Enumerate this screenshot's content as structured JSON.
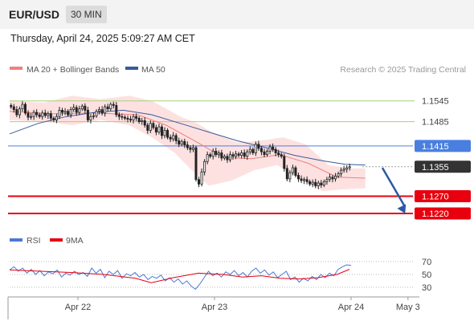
{
  "header": {
    "symbol": "EUR/USD",
    "timeframe": "30 MIN",
    "datetime": "Thursday, April 24, 2025 5:09:27 AM CET"
  },
  "colors": {
    "ma20": "#f08080",
    "ma50": "#3a5a9a",
    "bollinger_fill": "#fde1e1",
    "resistance": "#a6d17a",
    "pivot": "#4a7fe0",
    "support": "#e8000e",
    "current_price_bg": "#333333",
    "arrow": "#2a5aa8",
    "rsi": "#4a78d8",
    "rsi_ma": "#e8000e",
    "up_candle": "#ffffff",
    "down_candle": "#222222"
  },
  "legend": {
    "ma20_label": "MA 20 + Bollinger Bands",
    "ma50_label": "MA 50",
    "credit": "Research © 2025 Trading Central"
  },
  "rsi_legend": {
    "rsi_label": "RSI",
    "ma_label": "9MA"
  },
  "chart_data": {
    "type": "candlestick",
    "y_range": [
      1.119,
      1.16
    ],
    "x_range": [
      0,
      144
    ],
    "x_ticks": [
      {
        "x": 24,
        "label": "Apr 22"
      },
      {
        "x": 72,
        "label": "Apr 23"
      },
      {
        "x": 120,
        "label": "Apr 24"
      },
      {
        "x": 140,
        "label": "May 3"
      }
    ],
    "levels": [
      {
        "value": 1.1545,
        "label": "1.1545",
        "kind": "resistance"
      },
      {
        "value": 1.1485,
        "label": "1.1485",
        "kind": "resistance"
      },
      {
        "value": 1.1415,
        "label": "1.1415",
        "kind": "pivot"
      },
      {
        "value": 1.1355,
        "label": "1.1355",
        "kind": "current"
      },
      {
        "value": 1.127,
        "label": "1.1270",
        "kind": "support"
      },
      {
        "value": 1.122,
        "label": "1.1220",
        "kind": "support"
      }
    ],
    "arrow": {
      "from": [
        131,
        1.1352
      ],
      "to": [
        139,
        1.122
      ]
    },
    "close_series": [
      1.1528,
      1.152,
      1.1505,
      1.1522,
      1.1535,
      1.151,
      1.1498,
      1.15,
      1.1512,
      1.1505,
      1.15,
      1.151,
      1.1503,
      1.1508,
      1.1495,
      1.149,
      1.15,
      1.1518,
      1.1512,
      1.1515,
      1.1505,
      1.152,
      1.1526,
      1.1512,
      1.1522,
      1.153,
      1.1518,
      1.149,
      1.15,
      1.1502,
      1.1515,
      1.152,
      1.151,
      1.1528,
      1.1522,
      1.1535,
      1.1532,
      1.1505,
      1.15,
      1.1498,
      1.1495,
      1.1492,
      1.149,
      1.15,
      1.1495,
      1.1485,
      1.1488,
      1.1475,
      1.146,
      1.148,
      1.1468,
      1.1455,
      1.147,
      1.1445,
      1.146,
      1.144,
      1.1435,
      1.1445,
      1.143,
      1.142,
      1.1428,
      1.1418,
      1.141,
      1.1405,
      1.141,
      1.1318,
      1.1305,
      1.134,
      1.137,
      1.139,
      1.1385,
      1.14,
      1.139,
      1.1395,
      1.138,
      1.1385,
      1.1375,
      1.139,
      1.1385,
      1.1392,
      1.1388,
      1.1395,
      1.1385,
      1.1398,
      1.1405,
      1.1395,
      1.142,
      1.1408,
      1.1398,
      1.139,
      1.14,
      1.1412,
      1.1405,
      1.1395,
      1.139,
      1.1385,
      1.135,
      1.132,
      1.1338,
      1.1352,
      1.133,
      1.132,
      1.1315,
      1.1318,
      1.1312,
      1.1305,
      1.131,
      1.13,
      1.1308,
      1.1302,
      1.1312,
      1.1318,
      1.1325,
      1.132,
      1.1328,
      1.1335,
      1.1345,
      1.1348,
      1.1352,
      1.1355
    ],
    "ma20": [
      [
        0,
        1.1515
      ],
      [
        15,
        1.1508
      ],
      [
        30,
        1.151
      ],
      [
        45,
        1.1505
      ],
      [
        55,
        1.1475
      ],
      [
        65,
        1.143
      ],
      [
        75,
        1.1382
      ],
      [
        85,
        1.1378
      ],
      [
        95,
        1.139
      ],
      [
        105,
        1.1365
      ],
      [
        115,
        1.1325
      ],
      [
        125,
        1.1322
      ]
    ],
    "ma50": [
      [
        0,
        1.145
      ],
      [
        10,
        1.148
      ],
      [
        20,
        1.15
      ],
      [
        30,
        1.1512
      ],
      [
        40,
        1.1518
      ],
      [
        50,
        1.1505
      ],
      [
        60,
        1.148
      ],
      [
        70,
        1.1455
      ],
      [
        80,
        1.143
      ],
      [
        90,
        1.141
      ],
      [
        100,
        1.1388
      ],
      [
        110,
        1.1372
      ],
      [
        118,
        1.1362
      ],
      [
        125,
        1.136
      ]
    ],
    "bollinger_upper": [
      [
        0,
        1.1545
      ],
      [
        12,
        1.154
      ],
      [
        22,
        1.156
      ],
      [
        32,
        1.155
      ],
      [
        42,
        1.156
      ],
      [
        50,
        1.1545
      ],
      [
        60,
        1.15
      ],
      [
        66,
        1.148
      ],
      [
        72,
        1.145
      ],
      [
        80,
        1.1425
      ],
      [
        88,
        1.143
      ],
      [
        96,
        1.144
      ],
      [
        104,
        1.142
      ],
      [
        112,
        1.136
      ],
      [
        120,
        1.135
      ],
      [
        125,
        1.135
      ]
    ],
    "bollinger_lower": [
      [
        0,
        1.149
      ],
      [
        12,
        1.1485
      ],
      [
        22,
        1.1475
      ],
      [
        32,
        1.149
      ],
      [
        42,
        1.1475
      ],
      [
        50,
        1.144
      ],
      [
        58,
        1.1395
      ],
      [
        64,
        1.1345
      ],
      [
        70,
        1.13
      ],
      [
        78,
        1.1315
      ],
      [
        86,
        1.1345
      ],
      [
        94,
        1.136
      ],
      [
        102,
        1.132
      ],
      [
        110,
        1.1285
      ],
      [
        118,
        1.129
      ],
      [
        125,
        1.1293
      ]
    ],
    "rsi": {
      "y_range": [
        20,
        80
      ],
      "levels": [
        70,
        50,
        30
      ],
      "rsi_values": [
        57,
        62,
        55,
        60,
        52,
        58,
        50,
        56,
        48,
        54,
        51,
        57,
        46,
        52,
        49,
        55,
        50,
        53,
        47,
        60,
        52,
        58,
        45,
        55,
        50,
        56,
        44,
        51,
        48,
        53,
        46,
        50,
        42,
        47,
        44,
        49,
        40,
        45,
        38,
        43,
        35,
        40,
        32,
        27,
        35,
        45,
        55,
        48,
        52,
        46,
        54,
        50,
        56,
        48,
        53,
        46,
        55,
        60,
        52,
        57,
        49,
        54,
        45,
        50,
        55,
        42,
        46,
        38,
        44,
        40,
        47,
        42,
        50,
        45,
        52,
        48,
        58,
        62,
        65,
        64
      ],
      "ma_values": [
        [
          0,
          57
        ],
        [
          10,
          55
        ],
        [
          20,
          53
        ],
        [
          30,
          50
        ],
        [
          40,
          44
        ],
        [
          45,
          37
        ],
        [
          52,
          45
        ],
        [
          60,
          52
        ],
        [
          68,
          50
        ],
        [
          74,
          46
        ],
        [
          80,
          48
        ],
        [
          86,
          44
        ],
        [
          92,
          43
        ],
        [
          98,
          45
        ],
        [
          104,
          50
        ],
        [
          108,
          58
        ]
      ]
    }
  }
}
